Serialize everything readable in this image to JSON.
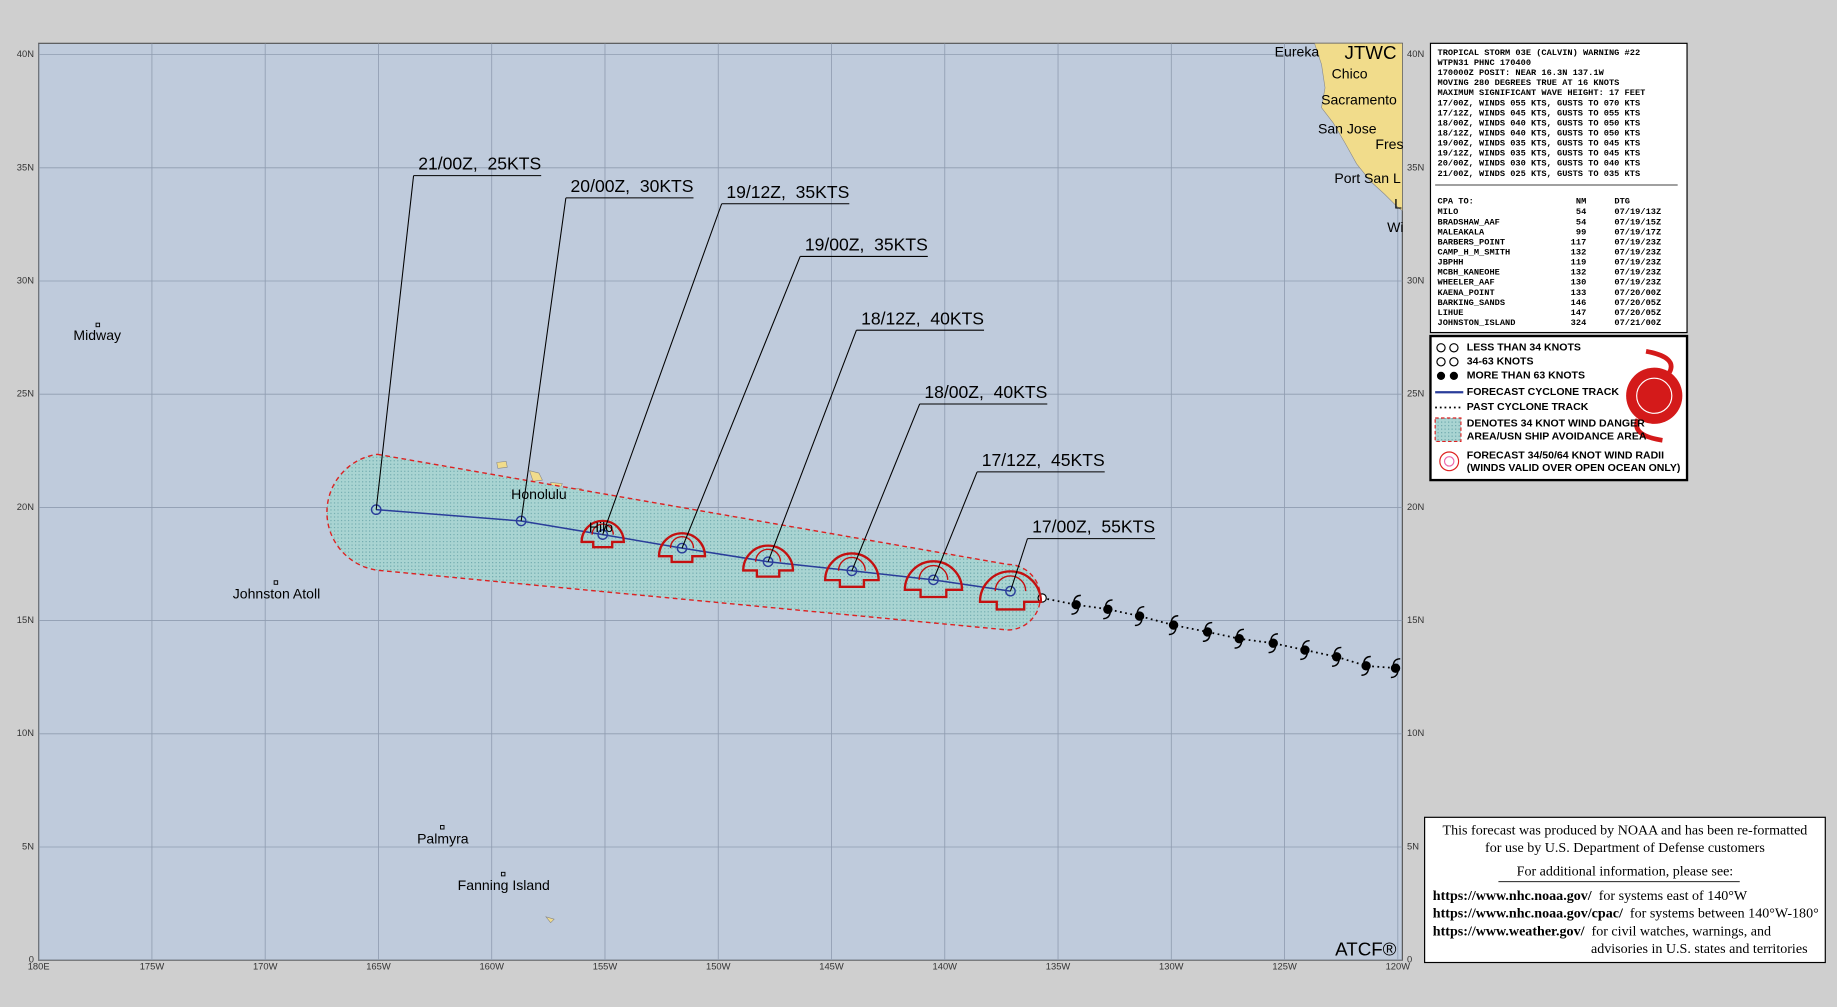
{
  "map": {
    "xlim": [
      -180,
      -119.8
    ],
    "ylim": [
      0,
      40.5
    ],
    "xticks": [
      {
        "value": -180,
        "label": "180E"
      },
      {
        "value": -175,
        "label": "175W"
      },
      {
        "value": -170,
        "label": "170W"
      },
      {
        "value": -165,
        "label": "165W"
      },
      {
        "value": -160,
        "label": "160W"
      },
      {
        "value": -155,
        "label": "155W"
      },
      {
        "value": -150,
        "label": "150W"
      },
      {
        "value": -145,
        "label": "145W"
      },
      {
        "value": -140,
        "label": "140W"
      },
      {
        "value": -135,
        "label": "135W"
      },
      {
        "value": -130,
        "label": "130W"
      },
      {
        "value": -125,
        "label": "125W"
      },
      {
        "value": -120,
        "label": "120W"
      }
    ],
    "yticks": [
      0,
      {
        "value": 5,
        "label": "5N"
      },
      {
        "value": 10,
        "label": "10N"
      },
      {
        "value": 15,
        "label": "15N"
      },
      {
        "value": 20,
        "label": "20N"
      },
      {
        "value": 25,
        "label": "25N"
      },
      {
        "value": 30,
        "label": "30N"
      },
      {
        "value": 35,
        "label": "35N"
      },
      {
        "value": 40,
        "label": "40N"
      }
    ],
    "grid": true,
    "forecast_track": [
      {
        "label": "17/00Z,  55KTS",
        "lon": -137.1,
        "lat": 16.3
      },
      {
        "label": "17/12Z,  45KTS",
        "lon": -140.5,
        "lat": 16.8
      },
      {
        "label": "18/00Z,  40KTS",
        "lon": -144.1,
        "lat": 17.2
      },
      {
        "label": "18/12Z,  40KTS",
        "lon": -147.8,
        "lat": 17.6
      },
      {
        "label": "19/00Z,  35KTS",
        "lon": -151.6,
        "lat": 18.2
      },
      {
        "label": "19/12Z,  35KTS",
        "lon": -155.1,
        "lat": 18.8
      },
      {
        "label": "20/00Z,  30KTS",
        "lon": -158.7,
        "lat": 19.4
      },
      {
        "label": "21/00Z,  25KTS",
        "lon": -165.1,
        "lat": 19.9
      }
    ],
    "past_track": {
      "lon": [
        -135.7,
        -134.2,
        -132.8,
        -131.4,
        -129.9,
        -128.4,
        -127.0,
        -125.5,
        -124.1,
        -122.7,
        -121.4,
        -120.1
      ],
      "lat": [
        16.0,
        15.7,
        15.5,
        15.2,
        14.8,
        14.5,
        14.2,
        14.0,
        13.7,
        13.4,
        13.0,
        12.9
      ]
    },
    "places": [
      "Midway",
      "Johnston Atoll",
      "Palmyra",
      "Fanning Island",
      "Honolulu",
      "Hilo",
      "Eureka",
      "Chico",
      "Sacramento",
      "San Jose",
      "Fres",
      "Port San L",
      "L",
      "Wi"
    ],
    "agency": "JTWC",
    "software": "ATCF®"
  },
  "warning": {
    "lines": [
      "TROPICAL STORM 03E (CALVIN) WARNING #22",
      "WTPN31 PHNC 170400",
      "170000Z POSIT: NEAR 16.3N 137.1W",
      "MOVING 280 DEGREES TRUE AT 16 KNOTS",
      "MAXIMUM SIGNIFICANT WAVE HEIGHT: 17 FEET",
      "17/00Z, WINDS 055 KTS, GUSTS TO 070 KTS",
      "17/12Z, WINDS 045 KTS, GUSTS TO 055 KTS",
      "18/00Z, WINDS 040 KTS, GUSTS TO 050 KTS",
      "18/12Z, WINDS 040 KTS, GUSTS TO 050 KTS",
      "19/00Z, WINDS 035 KTS, GUSTS TO 045 KTS",
      "19/12Z, WINDS 035 KTS, GUSTS TO 045 KTS",
      "20/00Z, WINDS 030 KTS, GUSTS TO 040 KTS",
      "21/00Z, WINDS 025 KTS, GUSTS TO 035 KTS"
    ],
    "cpa_header": [
      "CPA TO:",
      "NM",
      "DTG"
    ],
    "cpa_rows": [
      [
        "MILO",
        54,
        "07/19/13Z"
      ],
      [
        "BRADSHAW_AAF",
        54,
        "07/19/15Z"
      ],
      [
        "MALEAKALA",
        99,
        "07/19/17Z"
      ],
      [
        "BARBERS_POINT",
        117,
        "07/19/23Z"
      ],
      [
        "CAMP_H_M_SMITH",
        132,
        "07/19/23Z"
      ],
      [
        "JBPHH",
        119,
        "07/19/23Z"
      ],
      [
        "MCBH_KANEOHE",
        132,
        "07/19/23Z"
      ],
      [
        "WHEELER_AAF",
        130,
        "07/19/23Z"
      ],
      [
        "KAENA_POINT",
        133,
        "07/20/00Z"
      ],
      [
        "BARKING_SANDS",
        146,
        "07/20/05Z"
      ],
      [
        "LIHUE",
        147,
        "07/20/05Z"
      ],
      [
        "JOHNSTON_ISLAND",
        324,
        "07/21/00Z"
      ]
    ]
  },
  "legend": [
    "LESS THAN 34 KNOTS",
    "34-63 KNOTS",
    "MORE THAN 63 KNOTS",
    "FORECAST CYCLONE TRACK",
    "PAST CYCLONE TRACK",
    "DENOTES 34 KNOT WIND DANGER",
    "AREA/USN SHIP AVOIDANCE AREA",
    "FORECAST 34/50/64 KNOT WIND RADII",
    "(WINDS VALID OVER OPEN OCEAN ONLY)"
  ],
  "footer": {
    "lines": [
      "This forecast was produced by NOAA and has been re-formatted",
      "for use by U.S. Department of Defense customers",
      "For additional information, please see:"
    ],
    "links": [
      {
        "url": "https://www.nhc.noaa.gov/",
        "text": "for systems east of 140°W"
      },
      {
        "url": "https://www.nhc.noaa.gov/cpac/",
        "text": "for systems between 140°W-180°"
      },
      {
        "url": "https://www.weather.gov/",
        "text": "for civil watches, warnings, and"
      }
    ],
    "last_line": "advisories in U.S. states and territories"
  }
}
